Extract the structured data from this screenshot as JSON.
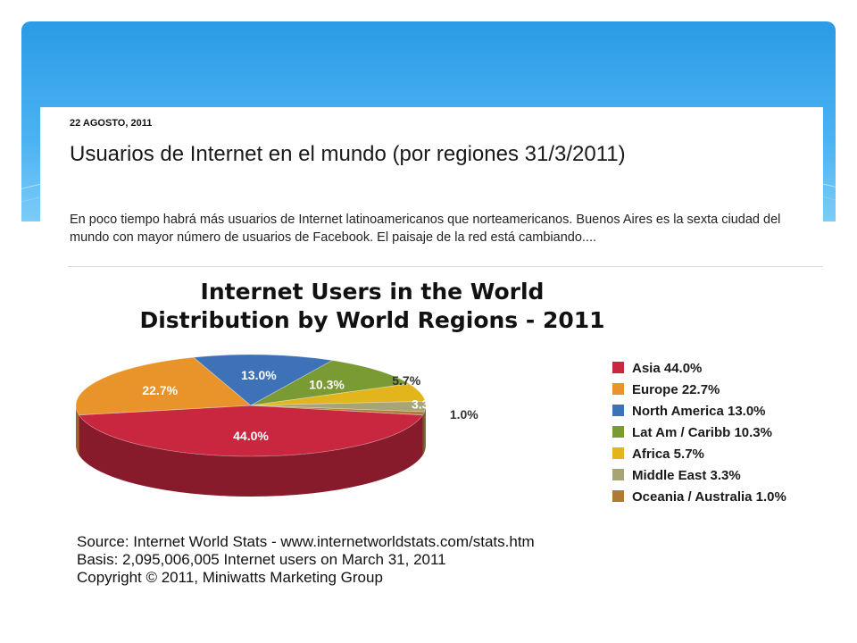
{
  "blog": {
    "date": "22 AGOSTO, 2011",
    "title": "Usuarios de Internet en el mundo (por regiones 31/3/2011)",
    "body": "En poco tiempo habrá más usuarios de Internet latinoamericanos que norteamericanos. Buenos Aires es la sexta ciudad del mundo con mayor número de usuarios de Facebook. El paisaje de la red está cambiando...."
  },
  "chart_data": {
    "type": "pie",
    "title": "Internet Users in the World",
    "subtitle": "Distribution by World Regions - 2011",
    "slices": [
      {
        "label": "Asia",
        "value": 44.0,
        "display": "44.0%",
        "legend": "Asia  44.0%",
        "color": "#c8273f"
      },
      {
        "label": "Europe",
        "value": 22.7,
        "display": "22.7%",
        "legend": "Europe  22.7%",
        "color": "#e8942a"
      },
      {
        "label": "North America",
        "value": 13.0,
        "display": "13.0%",
        "legend": "North America  13.0%",
        "color": "#3d72b8"
      },
      {
        "label": "Lat Am / Caribb",
        "value": 10.3,
        "display": "10.3%",
        "legend": "Lat Am / Caribb  10.3%",
        "color": "#7a9a34"
      },
      {
        "label": "Africa",
        "value": 5.7,
        "display": "5.7%",
        "legend": "Africa  5.7%",
        "color": "#e2b51c"
      },
      {
        "label": "Middle East",
        "value": 3.3,
        "display": "3.3%",
        "legend": "Middle East  3.3%",
        "color": "#a8a575"
      },
      {
        "label": "Oceania / Australia",
        "value": 1.0,
        "display": "1.0%",
        "legend": "Oceania / Australia  1.0%",
        "color": "#b07a35"
      }
    ],
    "legend_position": "right",
    "source": [
      "Source: Internet World Stats -  www.internetworldstats.com/stats.htm",
      "Basis: 2,095,006,005 Internet users on March 31, 2011",
      "Copyright © 2011, Miniwatts Marketing Group"
    ]
  }
}
